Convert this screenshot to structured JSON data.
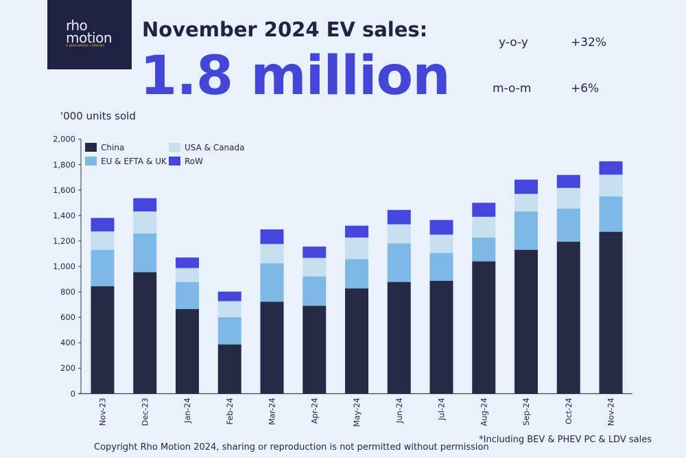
{
  "logo": {
    "line1": "rho",
    "line2": "motion",
    "tagline": "A BENCHMARK COMPANY"
  },
  "header": {
    "title": "November 2024 EV sales:",
    "headline": "1.8 million",
    "stats": [
      {
        "label": "y-o-y",
        "value": "+32%"
      },
      {
        "label": "m-o-m",
        "value": "+6%"
      }
    ]
  },
  "footnote": "*Including BEV & PHEV PC & LDV sales",
  "copyright": "Copyright Rho Motion 2024, sharing or reproduction is not permitted without permission",
  "chart_data": {
    "type": "bar",
    "stacked": true,
    "title": "",
    "xlabel": "",
    "ylabel": "'000 units sold",
    "ylim": [
      0,
      2000
    ],
    "yticks": [
      "0",
      "200",
      "400",
      "600",
      "800",
      "1,000",
      "1,200",
      "1,400",
      "1,600",
      "1,800",
      "2,000"
    ],
    "grid": false,
    "legend": "top-left",
    "categories": [
      "Nov-23",
      "Dec-23",
      "Jan-24",
      "Feb-24",
      "Mar-24",
      "Apr-24",
      "May-24",
      "Jun-24",
      "Jul-24",
      "Aug-24",
      "Sep-24",
      "Oct-24",
      "Nov-24"
    ],
    "series": [
      {
        "name": "China",
        "color": "#252a45",
        "values": [
          845,
          955,
          665,
          387,
          723,
          691,
          827,
          878,
          887,
          1040,
          1131,
          1194,
          1272
        ]
      },
      {
        "name": "EU & EFTA & UK",
        "color": "#7db8e6",
        "values": [
          286,
          304,
          213,
          214,
          302,
          230,
          231,
          304,
          219,
          187,
          301,
          261,
          278
        ]
      },
      {
        "name": "USA & Canada",
        "color": "#c6e0ef",
        "values": [
          144,
          173,
          109,
          126,
          151,
          146,
          169,
          149,
          144,
          163,
          138,
          162,
          171
        ]
      },
      {
        "name": "RoW",
        "color": "#4546dc",
        "values": [
          106,
          104,
          83,
          75,
          115,
          89,
          93,
          113,
          115,
          110,
          112,
          102,
          105
        ]
      }
    ]
  }
}
